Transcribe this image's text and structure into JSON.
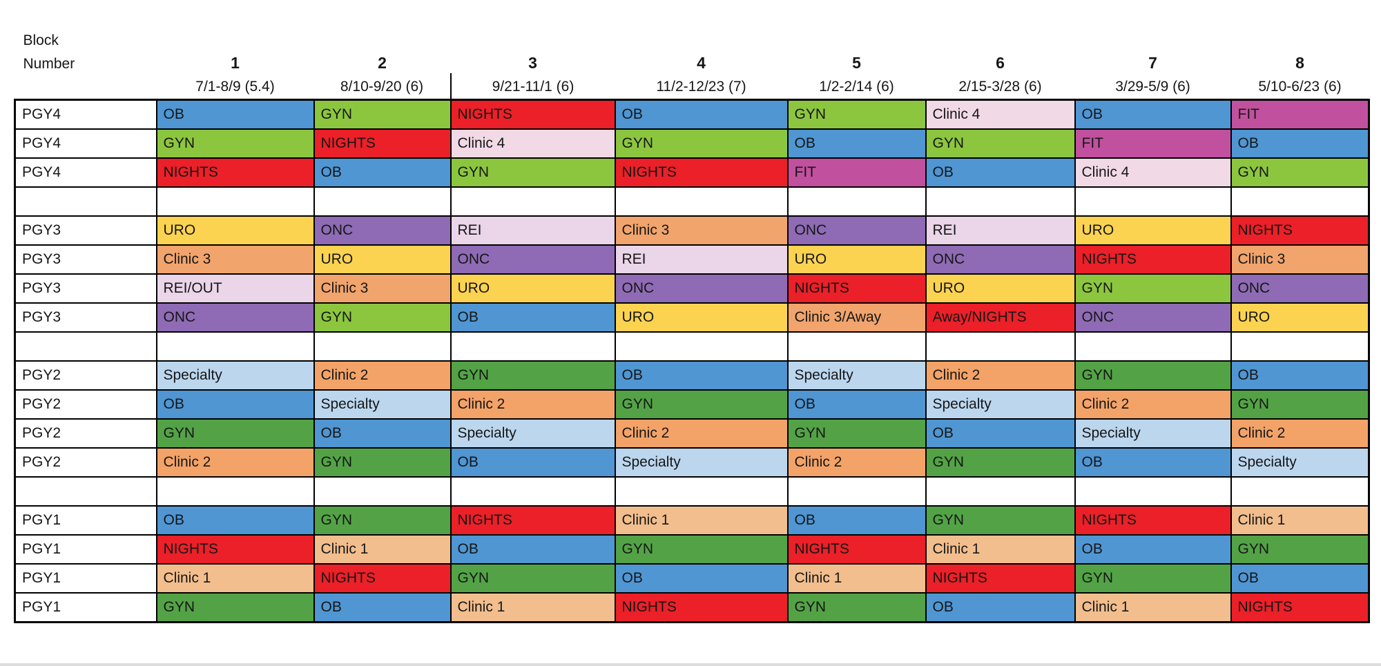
{
  "header": {
    "corner_label_line1": "Block",
    "corner_label_line2": "Number",
    "blocks": [
      {
        "number": "1",
        "dates": "7/1-8/9 (5.4)"
      },
      {
        "number": "2",
        "dates": "8/10-9/20 (6)"
      },
      {
        "number": "3",
        "dates": "9/21-11/1 (6)",
        "divider_left": true
      },
      {
        "number": "4",
        "dates": "11/2-12/23 (7)"
      },
      {
        "number": "5",
        "dates": "1/2-2/14 (6)"
      },
      {
        "number": "6",
        "dates": "2/15-3/28 (6)"
      },
      {
        "number": "7",
        "dates": "3/29-5/9 (6)"
      },
      {
        "number": "8",
        "dates": "5/10-6/23 (6)"
      }
    ]
  },
  "palette": {
    "OB": "#4F96D3",
    "GYN_SR": "#8CC63F",
    "GYN_JR": "#53A346",
    "NIGHTS": "#EB2028",
    "URO": "#FBD351",
    "ONC": "#8E6BB4",
    "REI": "#EAD5E9",
    "CLINIC1": "#F2BE8D",
    "CLINIC2": "#F3A368",
    "CLINIC3": "#F1A46C",
    "CLINIC4": "#F2D9E6",
    "SPECIALTY": "#BCD6EE",
    "FIT": "#C1519E"
  },
  "schedule": {
    "rows": [
      {
        "level": "PGY4",
        "cells": [
          {
            "t": "OB",
            "c": "OB"
          },
          {
            "t": "GYN",
            "c": "GYN_SR"
          },
          {
            "t": "NIGHTS",
            "c": "NIGHTS"
          },
          {
            "t": "OB",
            "c": "OB"
          },
          {
            "t": "GYN",
            "c": "GYN_SR"
          },
          {
            "t": "Clinic 4",
            "c": "CLINIC4"
          },
          {
            "t": "OB",
            "c": "OB"
          },
          {
            "t": "FIT",
            "c": "FIT"
          }
        ]
      },
      {
        "level": "PGY4",
        "cells": [
          {
            "t": "GYN",
            "c": "GYN_SR"
          },
          {
            "t": "NIGHTS",
            "c": "NIGHTS"
          },
          {
            "t": "Clinic 4",
            "c": "CLINIC4"
          },
          {
            "t": "GYN",
            "c": "GYN_SR"
          },
          {
            "t": "OB",
            "c": "OB"
          },
          {
            "t": "GYN",
            "c": "GYN_SR"
          },
          {
            "t": "FIT",
            "c": "FIT"
          },
          {
            "t": "OB",
            "c": "OB"
          }
        ]
      },
      {
        "level": "PGY4",
        "cells": [
          {
            "t": "NIGHTS",
            "c": "NIGHTS"
          },
          {
            "t": "OB",
            "c": "OB"
          },
          {
            "t": "GYN",
            "c": "GYN_SR"
          },
          {
            "t": "NIGHTS",
            "c": "NIGHTS"
          },
          {
            "t": "FIT",
            "c": "FIT"
          },
          {
            "t": "OB",
            "c": "OB"
          },
          {
            "t": "Clinic 4",
            "c": "CLINIC4"
          },
          {
            "t": "GYN",
            "c": "GYN_SR"
          }
        ]
      },
      {
        "type": "spacer"
      },
      {
        "level": "PGY3",
        "cells": [
          {
            "t": "URO",
            "c": "URO"
          },
          {
            "t": "ONC",
            "c": "ONC"
          },
          {
            "t": "REI",
            "c": "REI"
          },
          {
            "t": "Clinic 3",
            "c": "CLINIC3"
          },
          {
            "t": "ONC",
            "c": "ONC"
          },
          {
            "t": "REI",
            "c": "REI"
          },
          {
            "t": "URO",
            "c": "URO"
          },
          {
            "t": "NIGHTS",
            "c": "NIGHTS"
          }
        ]
      },
      {
        "level": "PGY3",
        "cells": [
          {
            "t": "Clinic 3",
            "c": "CLINIC3"
          },
          {
            "t": "URO",
            "c": "URO"
          },
          {
            "t": "ONC",
            "c": "ONC"
          },
          {
            "t": "REI",
            "c": "REI"
          },
          {
            "t": "URO",
            "c": "URO"
          },
          {
            "t": "ONC",
            "c": "ONC"
          },
          {
            "t": "NIGHTS",
            "c": "NIGHTS"
          },
          {
            "t": "Clinic 3",
            "c": "CLINIC3"
          }
        ]
      },
      {
        "level": "PGY3",
        "cells": [
          {
            "t": "REI/OUT",
            "c": "REI"
          },
          {
            "t": "Clinic 3",
            "c": "CLINIC3"
          },
          {
            "t": "URO",
            "c": "URO"
          },
          {
            "t": "ONC",
            "c": "ONC"
          },
          {
            "t": "NIGHTS",
            "c": "NIGHTS"
          },
          {
            "t": "URO",
            "c": "URO"
          },
          {
            "t": "GYN",
            "c": "GYN_SR"
          },
          {
            "t": "ONC",
            "c": "ONC"
          }
        ]
      },
      {
        "level": "PGY3",
        "cells": [
          {
            "t": "ONC",
            "c": "ONC"
          },
          {
            "t": "GYN",
            "c": "GYN_SR"
          },
          {
            "t": "OB",
            "c": "OB"
          },
          {
            "t": "URO",
            "c": "URO"
          },
          {
            "t": "Clinic 3/Away",
            "c": "CLINIC3"
          },
          {
            "t": "Away/NIGHTS",
            "c": "NIGHTS"
          },
          {
            "t": "ONC",
            "c": "ONC"
          },
          {
            "t": "URO",
            "c": "URO"
          }
        ]
      },
      {
        "type": "spacer"
      },
      {
        "level": "PGY2",
        "cells": [
          {
            "t": "Specialty",
            "c": "SPECIALTY"
          },
          {
            "t": "Clinic 2",
            "c": "CLINIC2"
          },
          {
            "t": "GYN",
            "c": "GYN_JR"
          },
          {
            "t": "OB",
            "c": "OB"
          },
          {
            "t": "Specialty",
            "c": "SPECIALTY"
          },
          {
            "t": "Clinic 2",
            "c": "CLINIC2"
          },
          {
            "t": "GYN",
            "c": "GYN_JR"
          },
          {
            "t": "OB",
            "c": "OB"
          }
        ]
      },
      {
        "level": "PGY2",
        "cells": [
          {
            "t": "OB",
            "c": "OB"
          },
          {
            "t": "Specialty",
            "c": "SPECIALTY"
          },
          {
            "t": "Clinic 2",
            "c": "CLINIC2"
          },
          {
            "t": "GYN",
            "c": "GYN_JR"
          },
          {
            "t": "OB",
            "c": "OB"
          },
          {
            "t": "Specialty",
            "c": "SPECIALTY"
          },
          {
            "t": "Clinic 2",
            "c": "CLINIC2"
          },
          {
            "t": "GYN",
            "c": "GYN_JR"
          }
        ]
      },
      {
        "level": "PGY2",
        "cells": [
          {
            "t": "GYN",
            "c": "GYN_JR"
          },
          {
            "t": "OB",
            "c": "OB"
          },
          {
            "t": "Specialty",
            "c": "SPECIALTY"
          },
          {
            "t": "Clinic 2",
            "c": "CLINIC2"
          },
          {
            "t": "GYN",
            "c": "GYN_JR"
          },
          {
            "t": "OB",
            "c": "OB"
          },
          {
            "t": "Specialty",
            "c": "SPECIALTY"
          },
          {
            "t": "Clinic 2",
            "c": "CLINIC2"
          }
        ]
      },
      {
        "level": "PGY2",
        "cells": [
          {
            "t": "Clinic 2",
            "c": "CLINIC2"
          },
          {
            "t": "GYN",
            "c": "GYN_JR"
          },
          {
            "t": "OB",
            "c": "OB"
          },
          {
            "t": "Specialty",
            "c": "SPECIALTY"
          },
          {
            "t": "Clinic 2",
            "c": "CLINIC2"
          },
          {
            "t": "GYN",
            "c": "GYN_JR"
          },
          {
            "t": "OB",
            "c": "OB"
          },
          {
            "t": "Specialty",
            "c": "SPECIALTY"
          }
        ]
      },
      {
        "type": "spacer"
      },
      {
        "level": "PGY1",
        "cells": [
          {
            "t": "OB",
            "c": "OB"
          },
          {
            "t": "GYN",
            "c": "GYN_JR"
          },
          {
            "t": "NIGHTS",
            "c": "NIGHTS"
          },
          {
            "t": "Clinic 1",
            "c": "CLINIC1"
          },
          {
            "t": "OB",
            "c": "OB"
          },
          {
            "t": "GYN",
            "c": "GYN_JR"
          },
          {
            "t": "NIGHTS",
            "c": "NIGHTS"
          },
          {
            "t": "Clinic 1",
            "c": "CLINIC1"
          }
        ]
      },
      {
        "level": "PGY1",
        "cells": [
          {
            "t": "NIGHTS",
            "c": "NIGHTS"
          },
          {
            "t": "Clinic 1",
            "c": "CLINIC1"
          },
          {
            "t": "OB",
            "c": "OB"
          },
          {
            "t": "GYN",
            "c": "GYN_JR"
          },
          {
            "t": "NIGHTS",
            "c": "NIGHTS"
          },
          {
            "t": "Clinic 1",
            "c": "CLINIC1"
          },
          {
            "t": "OB",
            "c": "OB"
          },
          {
            "t": "GYN",
            "c": "GYN_JR"
          }
        ]
      },
      {
        "level": "PGY1",
        "cells": [
          {
            "t": "Clinic 1",
            "c": "CLINIC1"
          },
          {
            "t": "NIGHTS",
            "c": "NIGHTS"
          },
          {
            "t": "GYN",
            "c": "GYN_JR"
          },
          {
            "t": "OB",
            "c": "OB"
          },
          {
            "t": "Clinic 1",
            "c": "CLINIC1"
          },
          {
            "t": "NIGHTS",
            "c": "NIGHTS"
          },
          {
            "t": "GYN",
            "c": "GYN_JR"
          },
          {
            "t": "OB",
            "c": "OB"
          }
        ]
      },
      {
        "level": "PGY1",
        "cells": [
          {
            "t": "GYN",
            "c": "GYN_JR"
          },
          {
            "t": "OB",
            "c": "OB"
          },
          {
            "t": "Clinic 1",
            "c": "CLINIC1"
          },
          {
            "t": "NIGHTS",
            "c": "NIGHTS"
          },
          {
            "t": "GYN",
            "c": "GYN_JR"
          },
          {
            "t": "OB",
            "c": "OB"
          },
          {
            "t": "Clinic 1",
            "c": "CLINIC1"
          },
          {
            "t": "NIGHTS",
            "c": "NIGHTS"
          }
        ]
      }
    ]
  }
}
